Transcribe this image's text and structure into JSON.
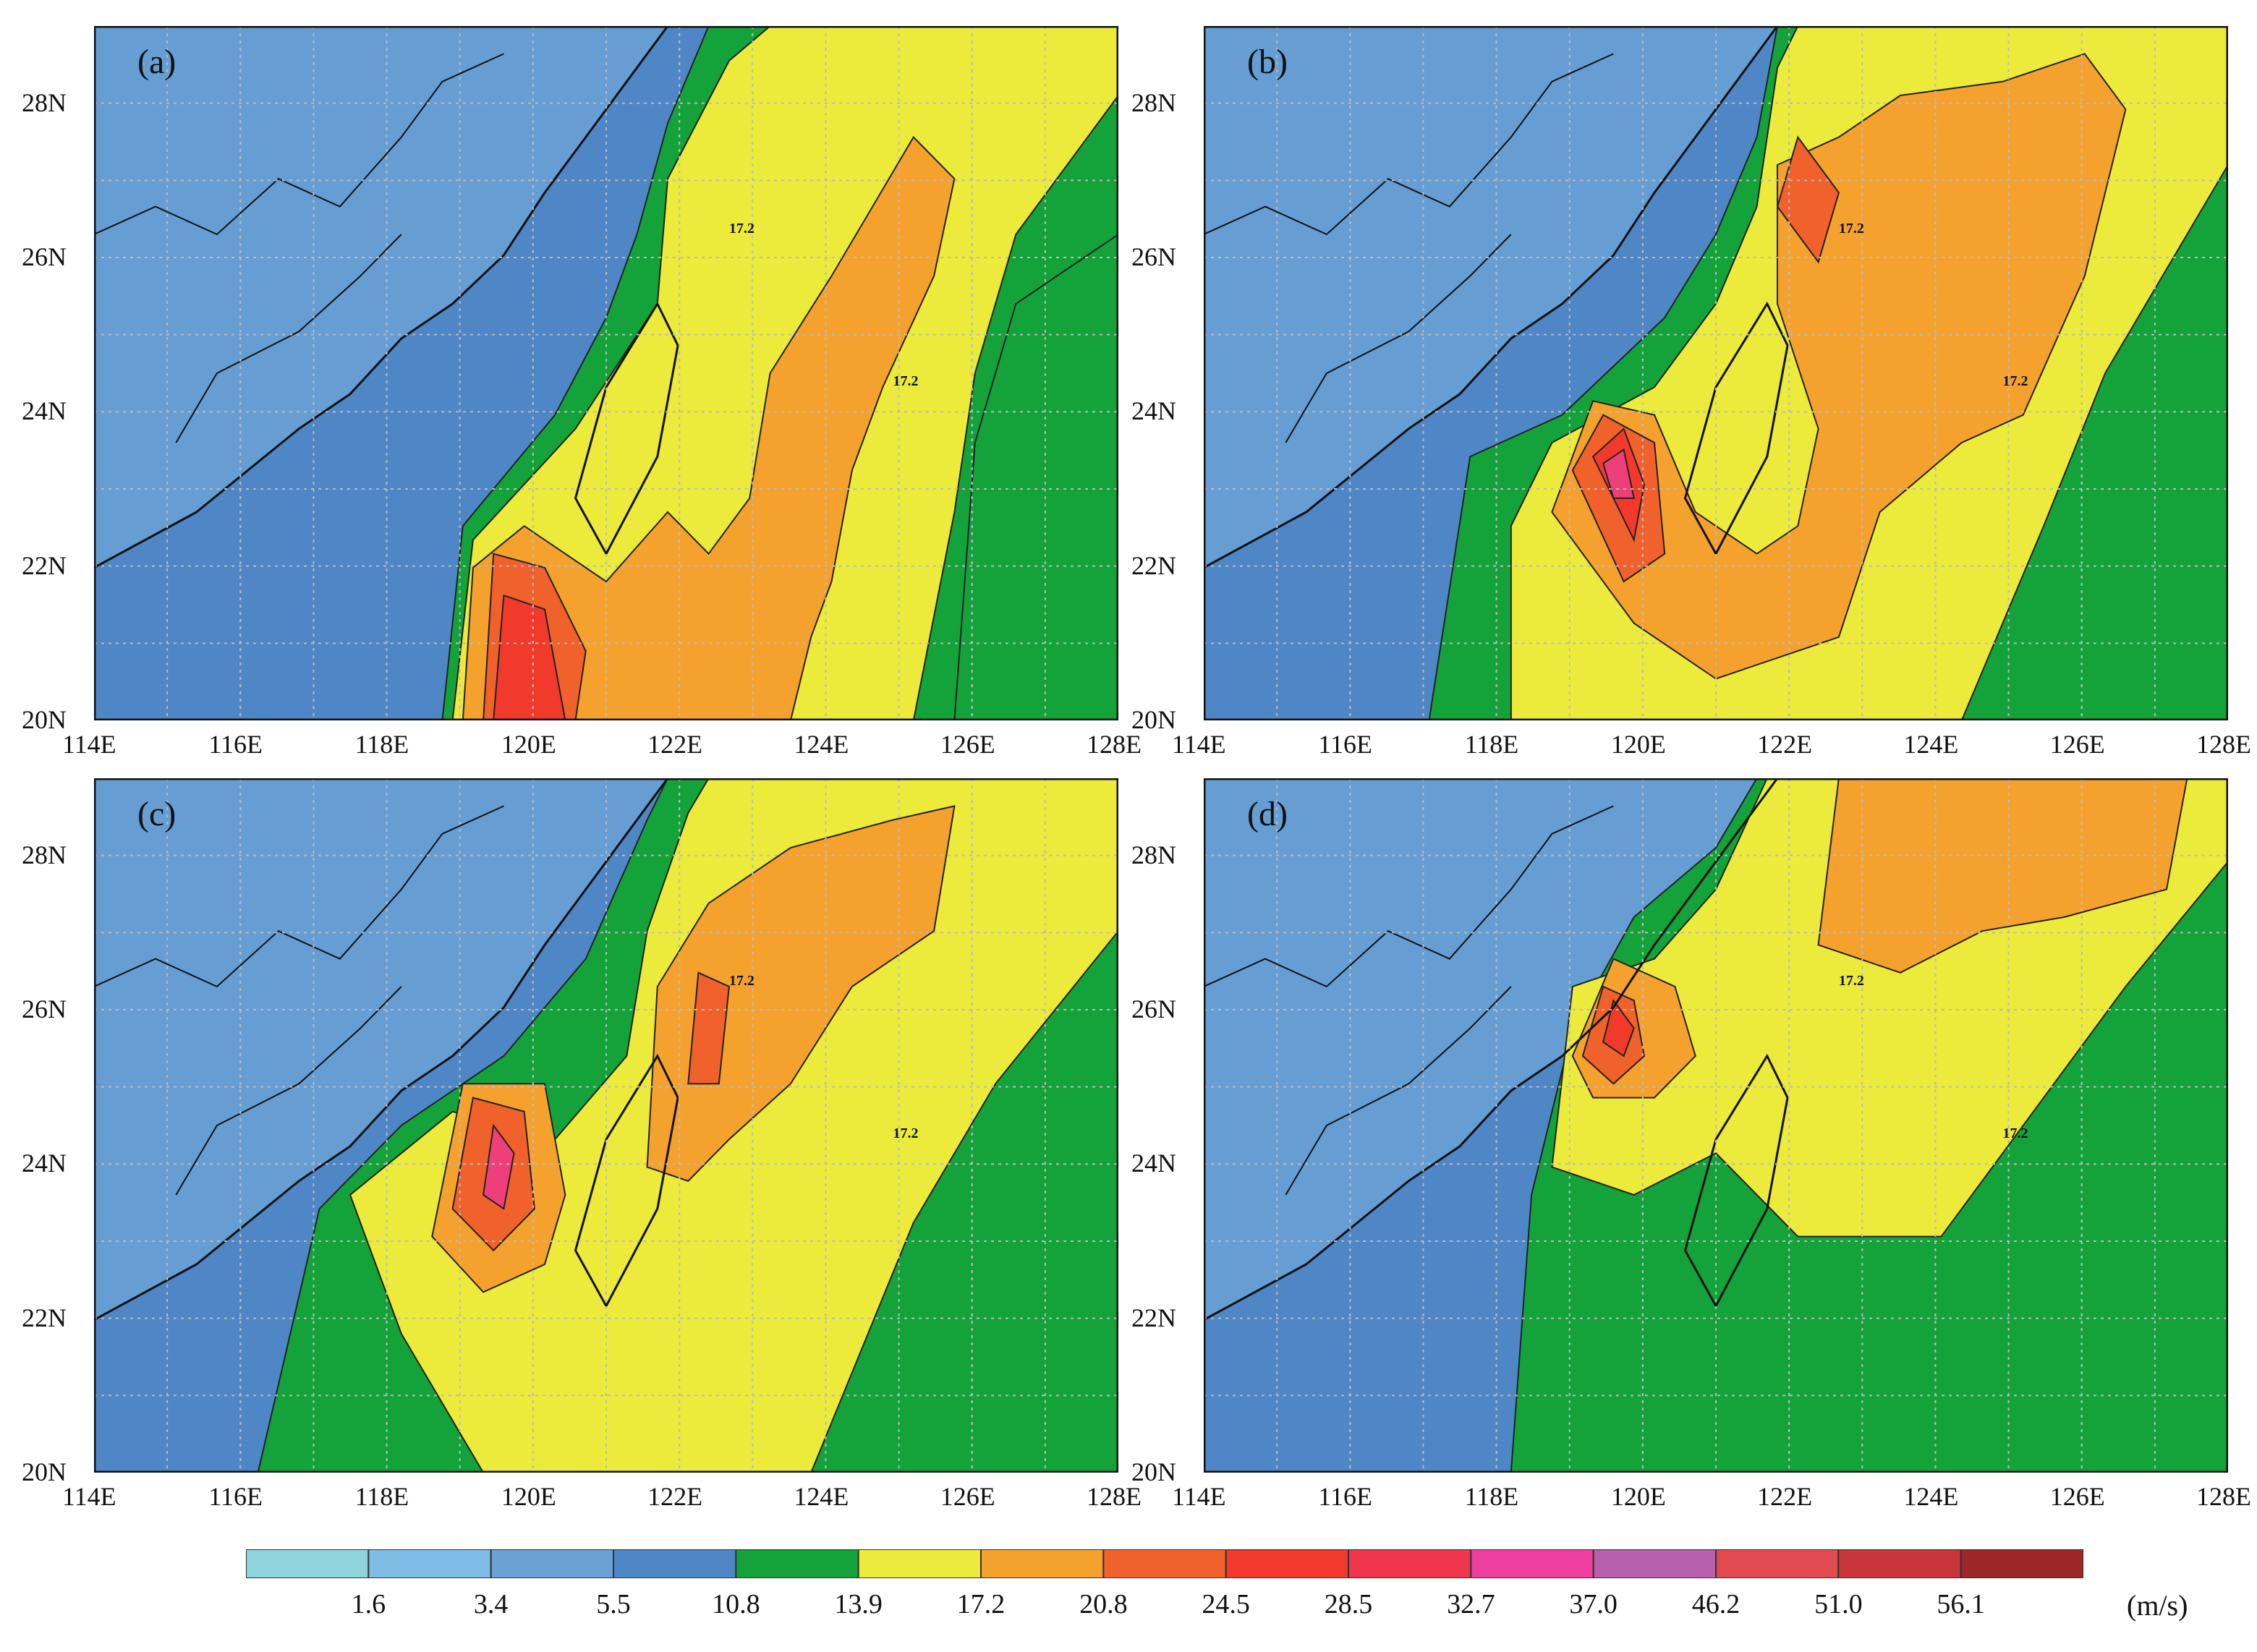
{
  "panels": [
    {
      "id": "a",
      "label": "(a)"
    },
    {
      "id": "b",
      "label": "(b)"
    },
    {
      "id": "c",
      "label": "(c)"
    },
    {
      "id": "d",
      "label": "(d)"
    }
  ],
  "axes": {
    "lat_ticks": [
      "20N",
      "22N",
      "24N",
      "26N",
      "28N"
    ],
    "lon_ticks": [
      "114E",
      "116E",
      "118E",
      "120E",
      "122E",
      "124E",
      "126E",
      "128E"
    ],
    "lat_range": [
      20,
      29
    ],
    "lon_range": [
      114,
      128
    ],
    "grid": "dotted"
  },
  "contour_label": "17.2",
  "colorbar": {
    "unit": "(m/s)",
    "labels": [
      "1.6",
      "3.4",
      "5.5",
      "10.8",
      "13.9",
      "17.2",
      "20.8",
      "24.5",
      "28.5",
      "32.7",
      "37.0",
      "46.2",
      "51.0",
      "56.1"
    ],
    "colors": [
      "#8fd3dc",
      "#7fbce6",
      "#6aa2d6",
      "#4f86c6",
      "#13a33a",
      "#ecea3a",
      "#f5a12e",
      "#f0612c",
      "#f23a2c",
      "#f0364c",
      "#ee3fa0",
      "#b85fae",
      "#e34a4f",
      "#c9363a",
      "#9b2727"
    ]
  },
  "colors": {
    "sea_low": "#4f86c6",
    "land_low": "#6aa2d6",
    "gale": "#13a33a",
    "storm": "#ecea3a",
    "strong": "#f5a12e",
    "severe": "#f0612c",
    "core": "#f23a2c",
    "eye": "#ee3f7a"
  }
}
